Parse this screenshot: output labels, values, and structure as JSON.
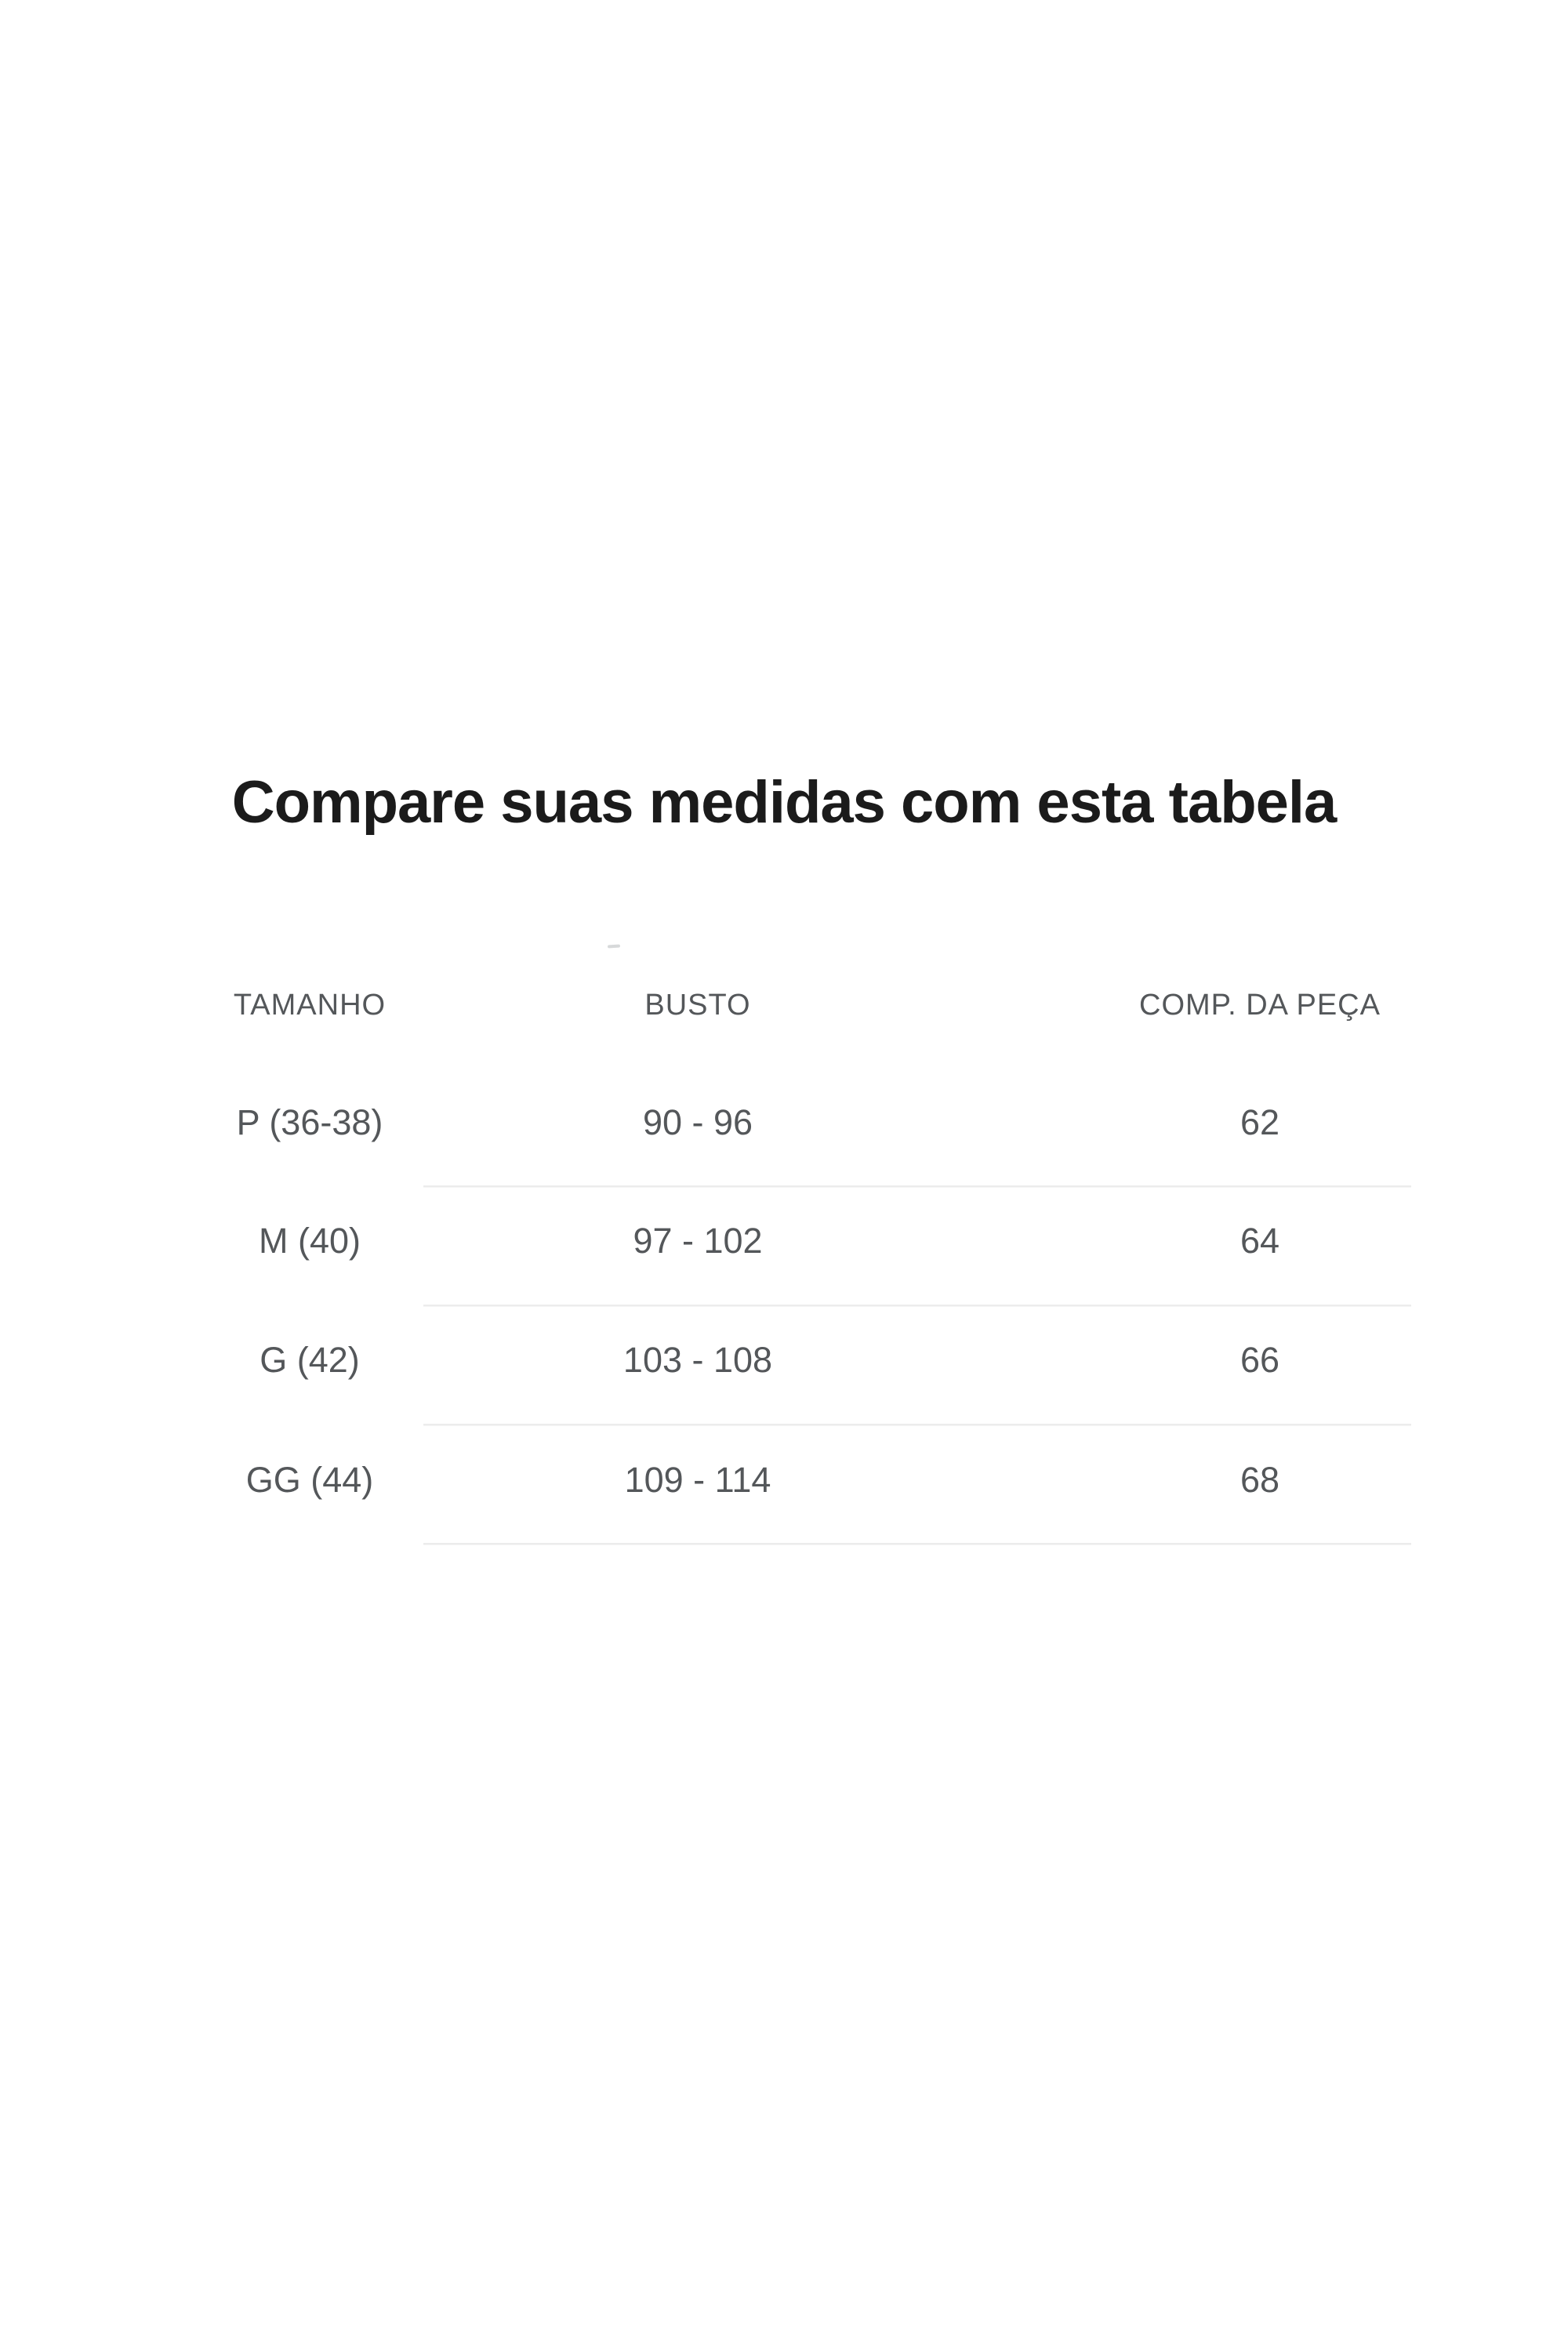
{
  "title": "Compare suas medidas com esta tabela",
  "table": {
    "headers": [
      "TAMANHO",
      "BUSTO",
      "COMP. DA PEÇA"
    ],
    "rows": [
      {
        "size": "P (36-38)",
        "bust": "90 - 96",
        "length": "62"
      },
      {
        "size": "M (40)",
        "bust": "97 - 102",
        "length": "64"
      },
      {
        "size": "G (42)",
        "bust": "103 - 108",
        "length": "66"
      },
      {
        "size": "GG (44)",
        "bust": "109 - 114",
        "length": "68"
      }
    ]
  },
  "colors": {
    "background": "#ffffff",
    "title_text": "#1b1b1b",
    "table_text": "#54575a",
    "divider": "#ececec",
    "stray_dash": "#c9ccce"
  }
}
